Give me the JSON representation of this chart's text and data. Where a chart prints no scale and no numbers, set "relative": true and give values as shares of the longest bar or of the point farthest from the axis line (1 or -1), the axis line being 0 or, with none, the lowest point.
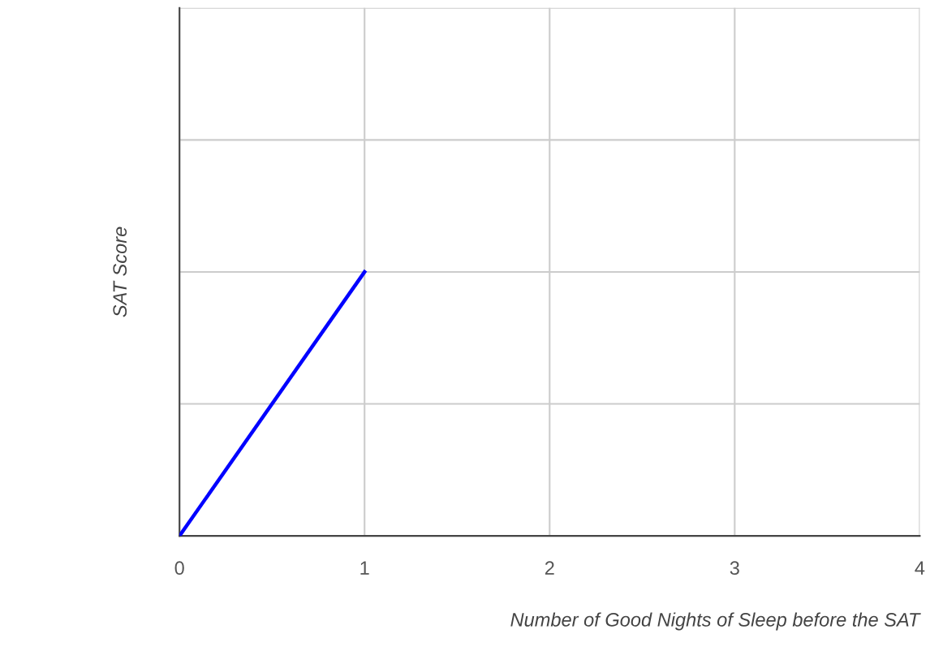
{
  "chart_data": {
    "type": "line",
    "xlabel": "Number of Good Nights of Sleep before the SAT",
    "ylabel": "SAT Score",
    "x": [
      0,
      1
    ],
    "relative": true,
    "series": [
      {
        "color": "#0000ff",
        "values": [
          0,
          1
        ]
      }
    ],
    "xlim": [
      0,
      4
    ],
    "xticks": [
      0,
      1,
      2,
      3,
      4
    ],
    "grid": true,
    "marker": "none",
    "line_style": "solid"
  }
}
